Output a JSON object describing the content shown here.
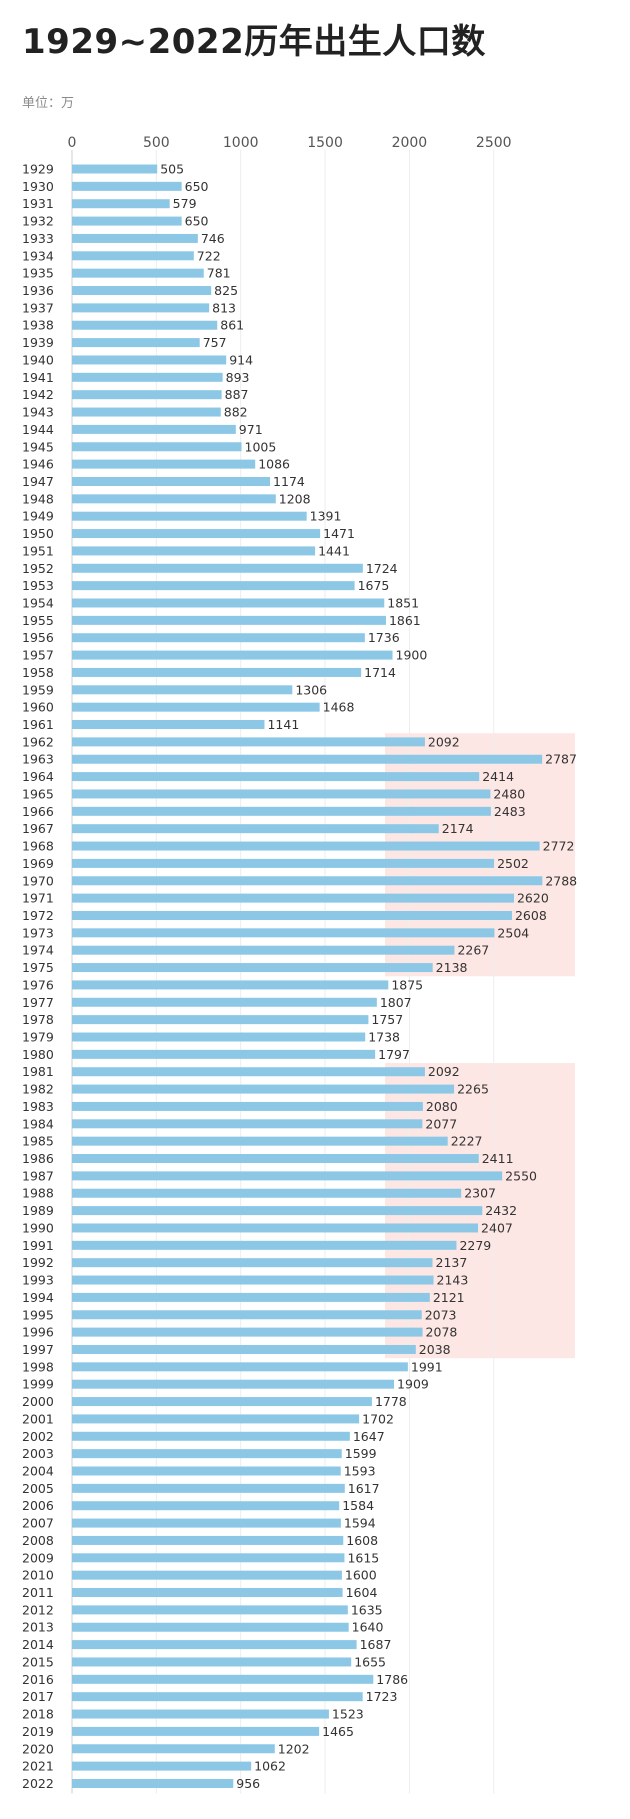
{
  "chart_data": {
    "type": "bar",
    "orientation": "horizontal",
    "title": "1929~2022历年出生人口数",
    "unit_text": "单位：万",
    "xlim": [
      0,
      2900
    ],
    "xticks": [
      0,
      500,
      1000,
      1500,
      2000,
      2500
    ],
    "grid": true,
    "bar_color": "#8cc8e6",
    "highlight_color": "#fde7e4",
    "highlight_ranges": [
      [
        1962,
        1975
      ],
      [
        1981,
        1997
      ]
    ],
    "categories": [
      "1929",
      "1930",
      "1931",
      "1932",
      "1933",
      "1934",
      "1935",
      "1936",
      "1937",
      "1938",
      "1939",
      "1940",
      "1941",
      "1942",
      "1943",
      "1944",
      "1945",
      "1946",
      "1947",
      "1948",
      "1949",
      "1950",
      "1951",
      "1952",
      "1953",
      "1954",
      "1955",
      "1956",
      "1957",
      "1958",
      "1959",
      "1960",
      "1961",
      "1962",
      "1963",
      "1964",
      "1965",
      "1966",
      "1967",
      "1968",
      "1969",
      "1970",
      "1971",
      "1972",
      "1973",
      "1974",
      "1975",
      "1976",
      "1977",
      "1978",
      "1979",
      "1980",
      "1981",
      "1982",
      "1983",
      "1984",
      "1985",
      "1986",
      "1987",
      "1988",
      "1989",
      "1990",
      "1991",
      "1992",
      "1993",
      "1994",
      "1995",
      "1996",
      "1997",
      "1998",
      "1999",
      "2000",
      "2001",
      "2002",
      "2003",
      "2004",
      "2005",
      "2006",
      "2007",
      "2008",
      "2009",
      "2010",
      "2011",
      "2012",
      "2013",
      "2014",
      "2015",
      "2016",
      "2017",
      "2018",
      "2019",
      "2020",
      "2021",
      "2022"
    ],
    "values": [
      505,
      650,
      579,
      650,
      746,
      722,
      781,
      825,
      813,
      861,
      757,
      914,
      893,
      887,
      882,
      971,
      1005,
      1086,
      1174,
      1208,
      1391,
      1471,
      1441,
      1724,
      1675,
      1851,
      1861,
      1736,
      1900,
      1714,
      1306,
      1468,
      1141,
      2092,
      2787,
      2414,
      2480,
      2483,
      2174,
      2772,
      2502,
      2788,
      2620,
      2608,
      2504,
      2267,
      2138,
      1875,
      1807,
      1757,
      1738,
      1797,
      2092,
      2265,
      2080,
      2077,
      2227,
      2411,
      2550,
      2307,
      2432,
      2407,
      2279,
      2137,
      2143,
      2121,
      2073,
      2078,
      2038,
      1991,
      1909,
      1778,
      1702,
      1647,
      1599,
      1593,
      1617,
      1584,
      1594,
      1608,
      1615,
      1600,
      1604,
      1635,
      1640,
      1687,
      1655,
      1786,
      1723,
      1523,
      1465,
      1202,
      1062,
      956
    ]
  }
}
